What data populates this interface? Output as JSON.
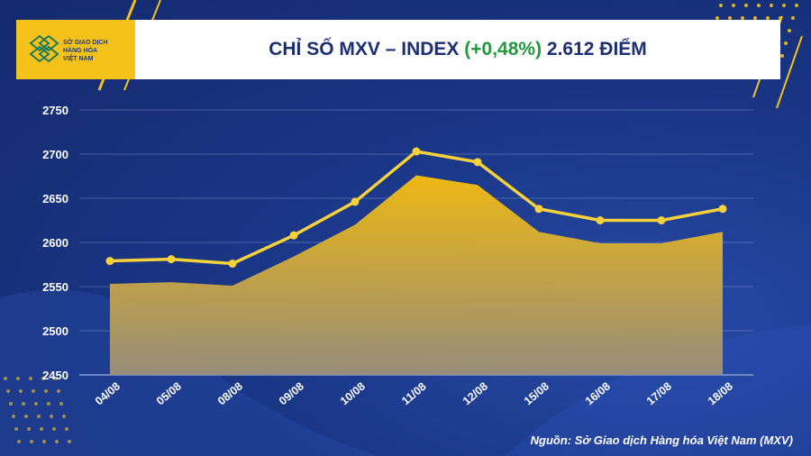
{
  "header": {
    "title_prefix": "CHỈ SỐ MXV – INDEX",
    "title_change": "(+0,48%)",
    "title_suffix": "2.612 ĐIỂM"
  },
  "logo": {
    "line1": "SỞ GIAO DỊCH",
    "line2": "HÀNG HÓA",
    "line3": "VIỆT NAM"
  },
  "source": "Nguồn: Sở Giao dịch Hàng hóa Việt Nam (MXV)",
  "colors": {
    "line": "#f5d13a",
    "area_top": "#f3bb10",
    "area_bottom": "#9a8f7a",
    "background": "#1a3686",
    "accent_yellow": "#f4c21b",
    "change_green": "#1f9a3c"
  },
  "chart_data": {
    "type": "area",
    "title": "CHỈ SỐ MXV – INDEX (+0,48%) 2.612 ĐIỂM",
    "categories": [
      "04/08",
      "05/08",
      "08/08",
      "09/08",
      "10/08",
      "11/08",
      "12/08",
      "15/08",
      "16/08",
      "17/08",
      "18/08"
    ],
    "series": [
      {
        "name": "MXV-Index (line)",
        "values": [
          2579,
          2581,
          2576,
          2608,
          2646,
          2703,
          2691,
          2638,
          2625,
          2625,
          2638
        ]
      },
      {
        "name": "MXV-Index (area)",
        "values": [
          2553,
          2555,
          2551,
          2584,
          2620,
          2676,
          2665,
          2612,
          2599,
          2599,
          2612
        ]
      }
    ],
    "yticks": [
      2450,
      2500,
      2550,
      2600,
      2650,
      2700,
      2750
    ],
    "ylim": [
      2450,
      2750
    ],
    "xlabel": "",
    "ylabel": "",
    "grid": true
  }
}
